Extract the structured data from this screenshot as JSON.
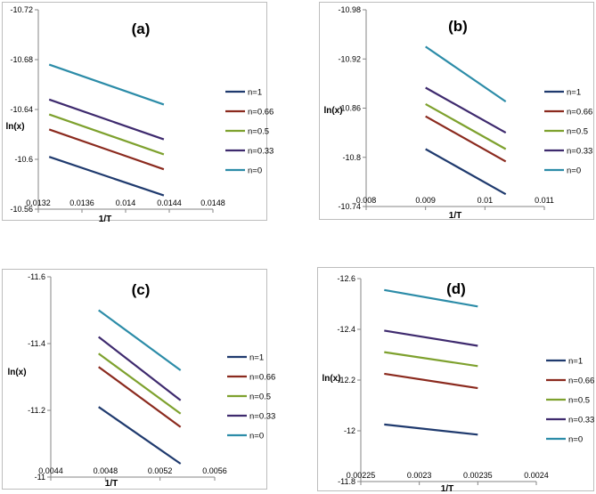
{
  "chart_data": [
    {
      "type": "line",
      "title": "(a)",
      "xlabel": "1/T",
      "ylabel": "ln(x)",
      "xlim": [
        0.0132,
        0.0148
      ],
      "ylim": [
        -10.56,
        -10.72
      ],
      "xticks": [
        "0.0132",
        "0.0136",
        "0.014",
        "0.0144",
        "0.0148"
      ],
      "yticks": [
        "-10.72",
        "-10.68",
        "-10.64",
        "-10.6",
        "-10.56"
      ],
      "x": [
        0.0133,
        0.01435
      ],
      "series": [
        {
          "name": "n=1",
          "color": "#1f3a6e",
          "values": [
            -10.602,
            -10.571
          ]
        },
        {
          "name": "n=0.66",
          "color": "#8b2a1e",
          "values": [
            -10.624,
            -10.592
          ]
        },
        {
          "name": "n=0.5",
          "color": "#7ea12e",
          "values": [
            -10.636,
            -10.604
          ]
        },
        {
          "name": "n=0.33",
          "color": "#3e2a6e",
          "values": [
            -10.648,
            -10.616
          ]
        },
        {
          "name": "n=0",
          "color": "#2c8ca8",
          "values": [
            -10.676,
            -10.644
          ]
        }
      ]
    },
    {
      "type": "line",
      "title": "(b)",
      "xlabel": "1/T",
      "ylabel": "ln(x)",
      "xlim": [
        0.008,
        0.011
      ],
      "ylim": [
        -10.74,
        -10.98
      ],
      "xticks": [
        "0.008",
        "0.009",
        "0.01",
        "0.011"
      ],
      "yticks": [
        "-10.98",
        "-10.92",
        "-10.86",
        "-10.8",
        "-10.74"
      ],
      "x": [
        0.009,
        0.01035
      ],
      "series": [
        {
          "name": "n=1",
          "color": "#1f3a6e",
          "values": [
            -10.81,
            -10.755
          ]
        },
        {
          "name": "n=0.66",
          "color": "#8b2a1e",
          "values": [
            -10.85,
            -10.795
          ]
        },
        {
          "name": "n=0.5",
          "color": "#7ea12e",
          "values": [
            -10.865,
            -10.81
          ]
        },
        {
          "name": "n=0.33",
          "color": "#3e2a6e",
          "values": [
            -10.885,
            -10.83
          ]
        },
        {
          "name": "n=0",
          "color": "#2c8ca8",
          "values": [
            -10.935,
            -10.868
          ]
        }
      ]
    },
    {
      "type": "line",
      "title": "(c)",
      "xlabel": "1/T",
      "ylabel": "ln(x)",
      "xlim": [
        0.0044,
        0.0056
      ],
      "ylim": [
        -11,
        -11.6
      ],
      "xticks": [
        "0.0044",
        "0.0048",
        "0.0052",
        "0.0056"
      ],
      "yticks": [
        "-11.6",
        "-11.4",
        "-11.2",
        "-11"
      ],
      "x": [
        0.00475,
        0.00535
      ],
      "series": [
        {
          "name": "n=1",
          "color": "#1f3a6e",
          "values": [
            -11.21,
            -11.04
          ]
        },
        {
          "name": "n=0.66",
          "color": "#8b2a1e",
          "values": [
            -11.33,
            -11.15
          ]
        },
        {
          "name": "n=0.5",
          "color": "#7ea12e",
          "values": [
            -11.37,
            -11.19
          ]
        },
        {
          "name": "n=0.33",
          "color": "#3e2a6e",
          "values": [
            -11.42,
            -11.23
          ]
        },
        {
          "name": "n=0",
          "color": "#2c8ca8",
          "values": [
            -11.5,
            -11.32
          ]
        }
      ]
    },
    {
      "type": "line",
      "title": "(d)",
      "xlabel": "1/T",
      "ylabel": "ln(x)",
      "xlim": [
        0.00225,
        0.0024
      ],
      "ylim": [
        -11.8,
        -12.6
      ],
      "xticks": [
        "0.00225",
        "0.0023",
        "0.00235",
        "0.0024"
      ],
      "yticks": [
        "-12.6",
        "-12.4",
        "-12.2",
        "-12",
        "-11.8"
      ],
      "x": [
        0.00227,
        0.00235
      ],
      "series": [
        {
          "name": "n=1",
          "color": "#1f3a6e",
          "values": [
            -12.025,
            -11.985
          ]
        },
        {
          "name": "n=0.66",
          "color": "#8b2a1e",
          "values": [
            -12.225,
            -12.168
          ]
        },
        {
          "name": "n=0.5",
          "color": "#7ea12e",
          "values": [
            -12.31,
            -12.255
          ]
        },
        {
          "name": "n=0.33",
          "color": "#3e2a6e",
          "values": [
            -12.395,
            -12.335
          ]
        },
        {
          "name": "n=0",
          "color": "#2c8ca8",
          "values": [
            -12.555,
            -12.49
          ]
        }
      ]
    }
  ]
}
